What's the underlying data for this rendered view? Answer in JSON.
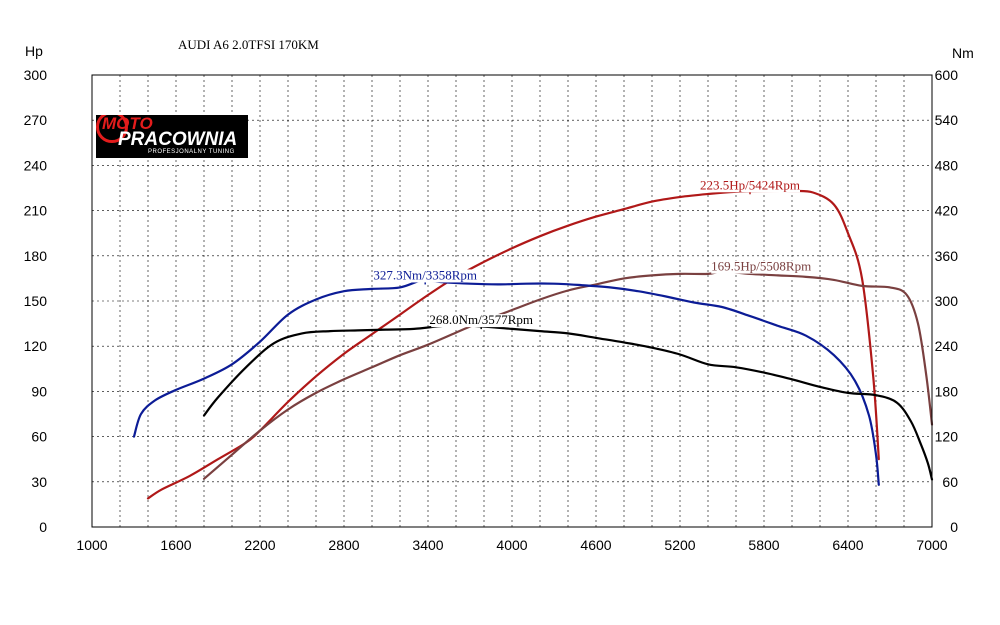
{
  "title": "AUDI A6 2.0TFSI 170KM",
  "logo": {
    "line1": "MOTO",
    "line2": "PRACOWNIA",
    "tagline": "PROFESJONALNY TUNING"
  },
  "chart_data": {
    "type": "line",
    "x_axis": {
      "label": "",
      "min": 1000,
      "max": 7000,
      "ticks": [
        1000,
        1600,
        2200,
        2800,
        3400,
        4000,
        4600,
        5200,
        5800,
        6400,
        7000
      ]
    },
    "y_left": {
      "unit": "Hp",
      "min": 0,
      "max": 300,
      "ticks": [
        0,
        30,
        60,
        90,
        120,
        150,
        180,
        210,
        240,
        270,
        300
      ]
    },
    "y_right": {
      "unit": "Nm",
      "min": 0,
      "max": 600,
      "ticks": [
        0,
        60,
        120,
        180,
        240,
        300,
        360,
        420,
        480,
        540,
        600
      ]
    },
    "grid": true,
    "series": [
      {
        "color": "#b01818",
        "axis": "left",
        "x": [
          1400,
          1500,
          1700,
          1900,
          2100,
          2200,
          2400,
          2600,
          2800,
          3000,
          3200,
          3400,
          3600,
          3800,
          4000,
          4200,
          4400,
          4600,
          4800,
          5000,
          5200,
          5400,
          5600,
          5800,
          6000,
          6150,
          6300,
          6400,
          6500,
          6580,
          6620
        ],
        "y": [
          19,
          25,
          34,
          45,
          56,
          64,
          83,
          100,
          115,
          128,
          141,
          154,
          166,
          176,
          185,
          193,
          200,
          206,
          211,
          216,
          219,
          221,
          222.5,
          223,
          223,
          222,
          214,
          195,
          165,
          100,
          45
        ]
      },
      {
        "color": "#7a4040",
        "axis": "left",
        "x": [
          1800,
          2000,
          2200,
          2400,
          2600,
          2800,
          3000,
          3200,
          3400,
          3600,
          3800,
          4000,
          4200,
          4400,
          4600,
          4800,
          5000,
          5200,
          5400,
          5508,
          5700,
          5900,
          6100,
          6300,
          6500,
          6700,
          6820,
          6900,
          6960,
          7000
        ],
        "y": [
          32,
          48,
          64,
          78,
          89,
          98,
          106,
          114,
          121,
          129,
          137,
          144,
          151,
          157,
          161,
          165,
          167,
          168,
          168,
          169.5,
          168,
          167,
          166,
          164,
          160,
          159,
          154,
          135,
          100,
          68
        ]
      },
      {
        "color": "#0c1c96",
        "axis": "right",
        "x": [
          1300,
          1350,
          1450,
          1600,
          1800,
          2000,
          2200,
          2400,
          2600,
          2800,
          3000,
          3200,
          3358,
          3500,
          3700,
          3900,
          4100,
          4300,
          4500,
          4700,
          4900,
          5100,
          5300,
          5500,
          5700,
          5900,
          6100,
          6300,
          6450,
          6550,
          6600,
          6620
        ],
        "y": [
          120,
          150,
          168,
          182,
          197,
          216,
          246,
          282,
          302,
          313,
          316,
          318,
          327.3,
          325,
          323,
          322,
          323,
          323,
          321,
          318,
          313,
          306,
          298,
          292,
          280,
          267,
          254,
          228,
          194,
          148,
          96,
          56
        ]
      },
      {
        "color": "#000000",
        "axis": "right",
        "x": [
          1800,
          1900,
          2100,
          2300,
          2500,
          2700,
          2900,
          3100,
          3300,
          3577,
          3800,
          4000,
          4200,
          4400,
          4600,
          4800,
          5000,
          5200,
          5400,
          5600,
          5800,
          6000,
          6200,
          6400,
          6600,
          6750,
          6850,
          6920,
          6970,
          7000
        ],
        "y": [
          148,
          172,
          212,
          244,
          257,
          260,
          261,
          262,
          263,
          268,
          266,
          263,
          260,
          257,
          251,
          245,
          238,
          229,
          216,
          212,
          205,
          196,
          186,
          178,
          175,
          165,
          140,
          110,
          85,
          63
        ]
      }
    ],
    "annotations": [
      {
        "text": "223.5Hp/5424Rpm",
        "color": "#b01818",
        "x": 5700,
        "y": 223.5,
        "axis": "left"
      },
      {
        "text": "169.5Hp/5508Rpm",
        "color": "#7a4040",
        "x": 5780,
        "y": 169.5,
        "axis": "left"
      },
      {
        "text": "327.3Nm/3358Rpm",
        "color": "#0c1c96",
        "x": 3380,
        "y": 327.3,
        "axis": "right"
      },
      {
        "text": "268.0Nm/3577Rpm",
        "color": "#000000",
        "x": 3780,
        "y": 268,
        "axis": "right"
      }
    ]
  }
}
